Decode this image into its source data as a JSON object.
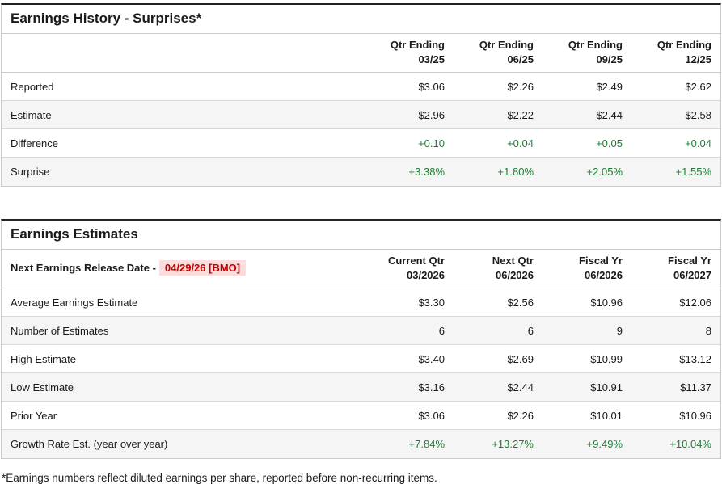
{
  "page": {
    "footnote": "*Earnings numbers reflect diluted earnings per share, reported before non-recurring items."
  },
  "colors": {
    "positive": "#1e7e34",
    "alert_red": "#c00000",
    "alert_bg": "#fbdddd",
    "row_alt": "#f5f5f5"
  },
  "surprises_table": {
    "title": "Earnings History - Surprises*",
    "columns": [
      {
        "line1": "Qtr Ending",
        "line2": "03/25"
      },
      {
        "line1": "Qtr Ending",
        "line2": "06/25"
      },
      {
        "line1": "Qtr Ending",
        "line2": "09/25"
      },
      {
        "line1": "Qtr Ending",
        "line2": "12/25"
      }
    ],
    "rows": [
      {
        "label": "Reported",
        "values": [
          "$3.06",
          "$2.26",
          "$2.49",
          "$2.62"
        ],
        "positive": false
      },
      {
        "label": "Estimate",
        "values": [
          "$2.96",
          "$2.22",
          "$2.44",
          "$2.58"
        ],
        "positive": false
      },
      {
        "label": "Difference",
        "values": [
          "+0.10",
          "+0.04",
          "+0.05",
          "+0.04"
        ],
        "positive": true
      },
      {
        "label": "Surprise",
        "values": [
          "+3.38%",
          "+1.80%",
          "+2.05%",
          "+1.55%"
        ],
        "positive": true
      }
    ]
  },
  "estimates_table": {
    "title": "Earnings Estimates",
    "release_label": "Next Earnings Release Date -",
    "release_date": "04/29/26 [BMO]",
    "columns": [
      {
        "line1": "Current Qtr",
        "line2": "03/2026"
      },
      {
        "line1": "Next Qtr",
        "line2": "06/2026"
      },
      {
        "line1": "Fiscal Yr",
        "line2": "06/2026"
      },
      {
        "line1": "Fiscal Yr",
        "line2": "06/2027"
      }
    ],
    "rows": [
      {
        "label": "Average Earnings Estimate",
        "values": [
          "$3.30",
          "$2.56",
          "$10.96",
          "$12.06"
        ],
        "positive": false
      },
      {
        "label": "Number of Estimates",
        "values": [
          "6",
          "6",
          "9",
          "8"
        ],
        "positive": false
      },
      {
        "label": "High Estimate",
        "values": [
          "$3.40",
          "$2.69",
          "$10.99",
          "$13.12"
        ],
        "positive": false
      },
      {
        "label": "Low Estimate",
        "values": [
          "$3.16",
          "$2.44",
          "$10.91",
          "$11.37"
        ],
        "positive": false
      },
      {
        "label": "Prior Year",
        "values": [
          "$3.06",
          "$2.26",
          "$10.01",
          "$10.96"
        ],
        "positive": false
      },
      {
        "label": "Growth Rate Est. (year over year)",
        "values": [
          "+7.84%",
          "+13.27%",
          "+9.49%",
          "+10.04%"
        ],
        "positive": true
      }
    ]
  }
}
